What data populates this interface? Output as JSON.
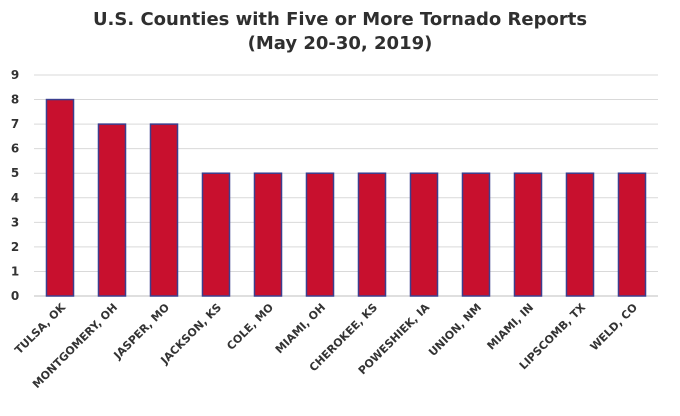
{
  "chart_data": {
    "type": "bar",
    "title": "U.S. Counties with Five or More Tornado Reports",
    "subtitle": "(May 20-30, 2019)",
    "xlabel": "",
    "ylabel": "",
    "categories": [
      "TULSA, OK",
      "MONTGOMERY, OH",
      "JASPER, MO",
      "JACKSON, KS",
      "COLE, MO",
      "MIAMI, OH",
      "CHEROKEE, KS",
      "POWESHIEK, IA",
      "UNION, NM",
      "MIAMI, IN",
      "LIPSCOMB, TX",
      "WELD, CO"
    ],
    "values": [
      8,
      7,
      7,
      5,
      5,
      5,
      5,
      5,
      5,
      5,
      5,
      5
    ],
    "ylim": [
      0,
      9
    ],
    "yticks": [
      "0",
      "1",
      "2",
      "3",
      "4",
      "5",
      "6",
      "7",
      "8",
      "9"
    ],
    "grid": true,
    "colors": {
      "bar": "#c8102e",
      "bar_edge": "#3b3f8f",
      "grid": "#d9d9d9"
    }
  }
}
